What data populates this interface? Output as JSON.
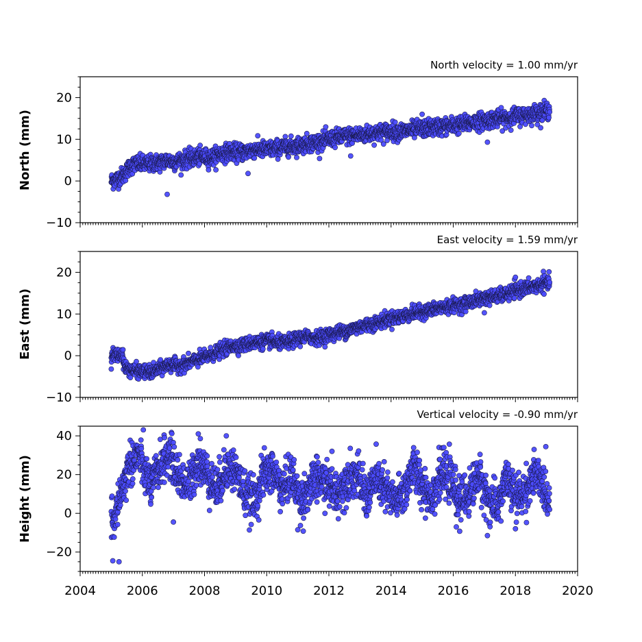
{
  "chart_data": [
    {
      "type": "scatter",
      "title": "North velocity = 1.00 mm/yr",
      "ylabel": "North (mm)",
      "xlim": [
        2004,
        2020
      ],
      "ylim": [
        -10,
        25
      ],
      "yticks": [
        -10,
        0,
        10,
        20
      ],
      "yticklabels": [
        "−10",
        "0",
        "10",
        "20"
      ],
      "x_range": [
        2005.0,
        2019.1
      ],
      "series": [
        {
          "color": "#4b4bff",
          "points": [
            [
              2005.0,
              0.0
            ],
            [
              2005.2,
              0.5
            ],
            [
              2005.4,
              1.5
            ],
            [
              2005.6,
              3.5
            ],
            [
              2005.8,
              4.2
            ],
            [
              2006.0,
              4.0
            ],
            [
              2006.3,
              4.2
            ],
            [
              2006.6,
              4.5
            ],
            [
              2006.8,
              5.0
            ],
            [
              2007.0,
              4.6
            ],
            [
              2007.3,
              5.0
            ],
            [
              2007.6,
              5.5
            ],
            [
              2007.9,
              5.8
            ],
            [
              2008.2,
              5.5
            ],
            [
              2008.5,
              6.5
            ],
            [
              2008.8,
              7.0
            ],
            [
              2009.0,
              6.8
            ],
            [
              2009.3,
              7.0
            ],
            [
              2009.6,
              7.6
            ],
            [
              2010.0,
              7.5
            ],
            [
              2010.3,
              7.8
            ],
            [
              2010.6,
              8.2
            ],
            [
              2011.0,
              8.5
            ],
            [
              2011.3,
              9.0
            ],
            [
              2011.6,
              9.2
            ],
            [
              2012.0,
              10.0
            ],
            [
              2012.3,
              10.4
            ],
            [
              2012.6,
              10.8
            ],
            [
              2013.0,
              11.0
            ],
            [
              2013.3,
              11.3
            ],
            [
              2013.6,
              11.6
            ],
            [
              2014.0,
              12.0
            ],
            [
              2014.3,
              11.8
            ],
            [
              2014.6,
              12.2
            ],
            [
              2015.0,
              12.5
            ],
            [
              2015.3,
              12.8
            ],
            [
              2015.6,
              13.0
            ],
            [
              2016.0,
              13.3
            ],
            [
              2016.3,
              13.6
            ],
            [
              2016.6,
              14.0
            ],
            [
              2017.0,
              14.5
            ],
            [
              2017.3,
              14.8
            ],
            [
              2017.6,
              15.0
            ],
            [
              2018.0,
              15.5
            ],
            [
              2018.3,
              15.8
            ],
            [
              2018.6,
              16.2
            ],
            [
              2019.0,
              16.8
            ],
            [
              2019.1,
              17.0
            ]
          ],
          "outliers": [
            [
              2006.8,
              -3.2
            ],
            [
              2009.4,
              1.8
            ],
            [
              2012.7,
              6.0
            ],
            [
              2017.1,
              9.3
            ],
            [
              2015.0,
              16.0
            ]
          ]
        }
      ]
    },
    {
      "type": "scatter",
      "title": "East velocity = 1.59 mm/yr",
      "ylabel": "East (mm)",
      "xlim": [
        2004,
        2020
      ],
      "ylim": [
        -10,
        25
      ],
      "yticks": [
        -10,
        0,
        10,
        20
      ],
      "yticklabels": [
        "−10",
        "0",
        "10",
        "20"
      ],
      "x_range": [
        2005.0,
        2019.1
      ],
      "series": [
        {
          "color": "#4b4bff",
          "points": [
            [
              2005.0,
              0.2
            ],
            [
              2005.2,
              0.0
            ],
            [
              2005.35,
              0.5
            ],
            [
              2005.45,
              -3.0
            ],
            [
              2005.7,
              -3.5
            ],
            [
              2006.0,
              -3.8
            ],
            [
              2006.3,
              -4.0
            ],
            [
              2006.6,
              -3.0
            ],
            [
              2006.9,
              -2.0
            ],
            [
              2007.1,
              -2.5
            ],
            [
              2007.4,
              -2.0
            ],
            [
              2007.7,
              -1.2
            ],
            [
              2008.0,
              -0.5
            ],
            [
              2008.3,
              0.5
            ],
            [
              2008.6,
              1.5
            ],
            [
              2008.9,
              2.3
            ],
            [
              2009.2,
              2.5
            ],
            [
              2009.5,
              3.0
            ],
            [
              2009.8,
              3.3
            ],
            [
              2010.1,
              3.5
            ],
            [
              2010.4,
              3.0
            ],
            [
              2010.7,
              3.2
            ],
            [
              2011.0,
              4.2
            ],
            [
              2011.3,
              4.5
            ],
            [
              2011.6,
              4.3
            ],
            [
              2012.0,
              5.0
            ],
            [
              2012.3,
              5.6
            ],
            [
              2012.6,
              6.0
            ],
            [
              2013.0,
              7.0
            ],
            [
              2013.3,
              7.5
            ],
            [
              2013.6,
              8.0
            ],
            [
              2014.0,
              9.0
            ],
            [
              2014.3,
              9.3
            ],
            [
              2014.6,
              10.0
            ],
            [
              2015.0,
              10.5
            ],
            [
              2015.3,
              11.0
            ],
            [
              2015.6,
              11.5
            ],
            [
              2016.0,
              12.0
            ],
            [
              2016.3,
              12.3
            ],
            [
              2016.6,
              13.0
            ],
            [
              2017.0,
              13.8
            ],
            [
              2017.3,
              14.2
            ],
            [
              2017.6,
              14.5
            ],
            [
              2018.0,
              15.5
            ],
            [
              2018.3,
              16.2
            ],
            [
              2018.6,
              16.6
            ],
            [
              2019.0,
              17.3
            ],
            [
              2019.1,
              17.5
            ]
          ],
          "outliers": [
            [
              2005.0,
              -3.2
            ],
            [
              2017.0,
              10.3
            ],
            [
              2018.9,
              20.2
            ],
            [
              2018.0,
              18.8
            ]
          ]
        }
      ]
    },
    {
      "type": "scatter",
      "title": "Vertical velocity = -0.90 mm/yr",
      "ylabel": "Height (mm)",
      "xlim": [
        2004,
        2020
      ],
      "ylim": [
        -30,
        45
      ],
      "yticks": [
        -20,
        0,
        20,
        40
      ],
      "yticklabels": [
        "−20",
        "0",
        "20",
        "40"
      ],
      "x_range": [
        2005.0,
        2019.1
      ],
      "xticks": [
        2004,
        2006,
        2008,
        2010,
        2012,
        2014,
        2016,
        2018,
        2020
      ],
      "xticklabels": [
        "2004",
        "2006",
        "2008",
        "2010",
        "2012",
        "2014",
        "2016",
        "2018",
        "2020"
      ],
      "series": [
        {
          "color": "#4b4bff",
          "points": [
            [
              2005.0,
              0.0
            ],
            [
              2005.1,
              -8.0
            ],
            [
              2005.2,
              5.0
            ],
            [
              2005.4,
              15.0
            ],
            [
              2005.6,
              26.0
            ],
            [
              2005.9,
              30.0
            ],
            [
              2006.1,
              20.0
            ],
            [
              2006.3,
              14.0
            ],
            [
              2006.6,
              26.0
            ],
            [
              2006.9,
              30.0
            ],
            [
              2007.2,
              18.0
            ],
            [
              2007.5,
              14.0
            ],
            [
              2007.8,
              28.0
            ],
            [
              2008.1,
              20.0
            ],
            [
              2008.4,
              12.0
            ],
            [
              2008.7,
              24.0
            ],
            [
              2009.0,
              22.0
            ],
            [
              2009.3,
              10.0
            ],
            [
              2009.6,
              6.0
            ],
            [
              2009.9,
              20.0
            ],
            [
              2010.2,
              22.0
            ],
            [
              2010.5,
              12.0
            ],
            [
              2010.8,
              20.0
            ],
            [
              2011.1,
              6.0
            ],
            [
              2011.4,
              14.0
            ],
            [
              2011.7,
              18.0
            ],
            [
              2012.0,
              14.0
            ],
            [
              2012.3,
              10.0
            ],
            [
              2012.6,
              18.0
            ],
            [
              2012.9,
              20.0
            ],
            [
              2013.2,
              8.0
            ],
            [
              2013.5,
              18.0
            ],
            [
              2013.8,
              12.0
            ],
            [
              2014.1,
              6.0
            ],
            [
              2014.4,
              10.0
            ],
            [
              2014.7,
              24.0
            ],
            [
              2015.0,
              15.0
            ],
            [
              2015.3,
              8.0
            ],
            [
              2015.6,
              20.0
            ],
            [
              2015.9,
              18.0
            ],
            [
              2016.2,
              6.0
            ],
            [
              2016.5,
              10.0
            ],
            [
              2016.8,
              20.0
            ],
            [
              2017.1,
              8.0
            ],
            [
              2017.4,
              2.0
            ],
            [
              2017.7,
              18.0
            ],
            [
              2018.0,
              8.0
            ],
            [
              2018.3,
              10.0
            ],
            [
              2018.6,
              20.0
            ],
            [
              2018.9,
              14.0
            ],
            [
              2019.1,
              6.0
            ]
          ],
          "outliers": [
            [
              2005.05,
              -24.5
            ],
            [
              2005.25,
              -25.0
            ],
            [
              2007.8,
              41.0
            ],
            [
              2007.0,
              -4.5
            ],
            [
              2011.0,
              -8.5
            ],
            [
              2017.1,
              -11.5
            ],
            [
              2016.1,
              -7.0
            ],
            [
              2018.0,
              -8.0
            ],
            [
              2008.7,
              40.0
            ],
            [
              2012.1,
              32.0
            ],
            [
              2015.7,
              34.0
            ]
          ]
        }
      ]
    }
  ]
}
